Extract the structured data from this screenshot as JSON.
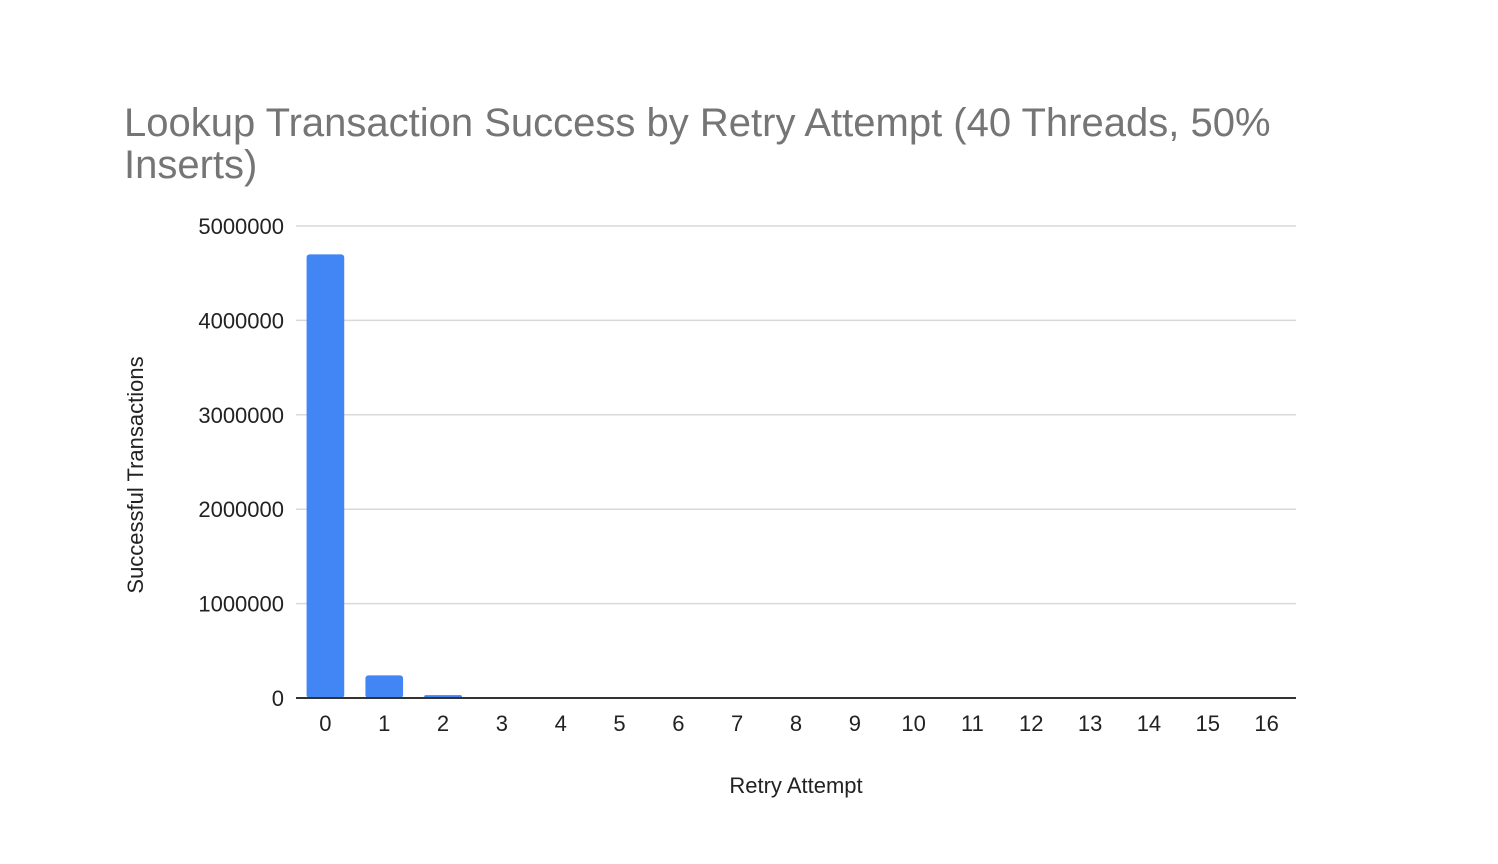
{
  "chart_data": {
    "type": "bar",
    "title": "Lookup Transaction Success by Retry Attempt (40 Threads, 50% Inserts)",
    "xlabel": "Retry Attempt",
    "ylabel": "Successful Transactions",
    "categories": [
      "0",
      "1",
      "2",
      "3",
      "4",
      "5",
      "6",
      "7",
      "8",
      "9",
      "10",
      "11",
      "12",
      "13",
      "14",
      "15",
      "16"
    ],
    "values": [
      4700000,
      240000,
      30000,
      3000,
      1000,
      300,
      100,
      50,
      20,
      10,
      5,
      3,
      2,
      1,
      1,
      1,
      1
    ],
    "ylim": [
      0,
      5000000
    ],
    "yticks": [
      "0",
      "1000000",
      "2000000",
      "3000000",
      "4000000",
      "5000000"
    ],
    "grid": true,
    "legend": "none",
    "colors": {
      "bar": "#4285f4",
      "title": "#757575",
      "grid": "#d9d9d9",
      "axis": "#333333",
      "text": "#222222"
    }
  }
}
